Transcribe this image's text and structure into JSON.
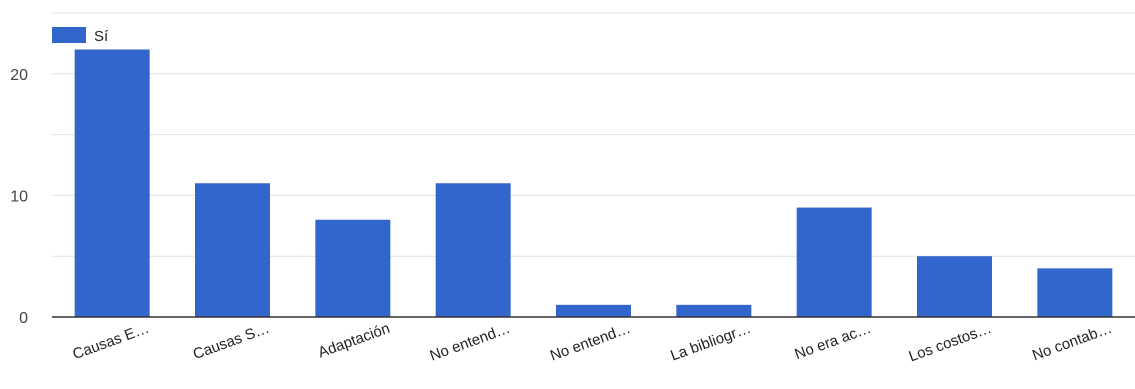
{
  "chart_data": {
    "type": "bar",
    "categories": [
      "Causas E…",
      "Causas S…",
      "Adaptación",
      "No entend…",
      "No entend…",
      "La bibliogr…",
      "No era ac…",
      "Los costos…",
      "No contab…"
    ],
    "series": [
      {
        "name": "Sí",
        "values": [
          22,
          11,
          8,
          11,
          1,
          1,
          9,
          5,
          4
        ]
      }
    ],
    "ylim": [
      0,
      25
    ],
    "yticks": [
      0,
      10,
      20
    ],
    "grid": true,
    "legend": "top-left",
    "colors": {
      "bar": "#3366cc",
      "grid": "#e0e0e0",
      "axis": "#333333"
    }
  }
}
